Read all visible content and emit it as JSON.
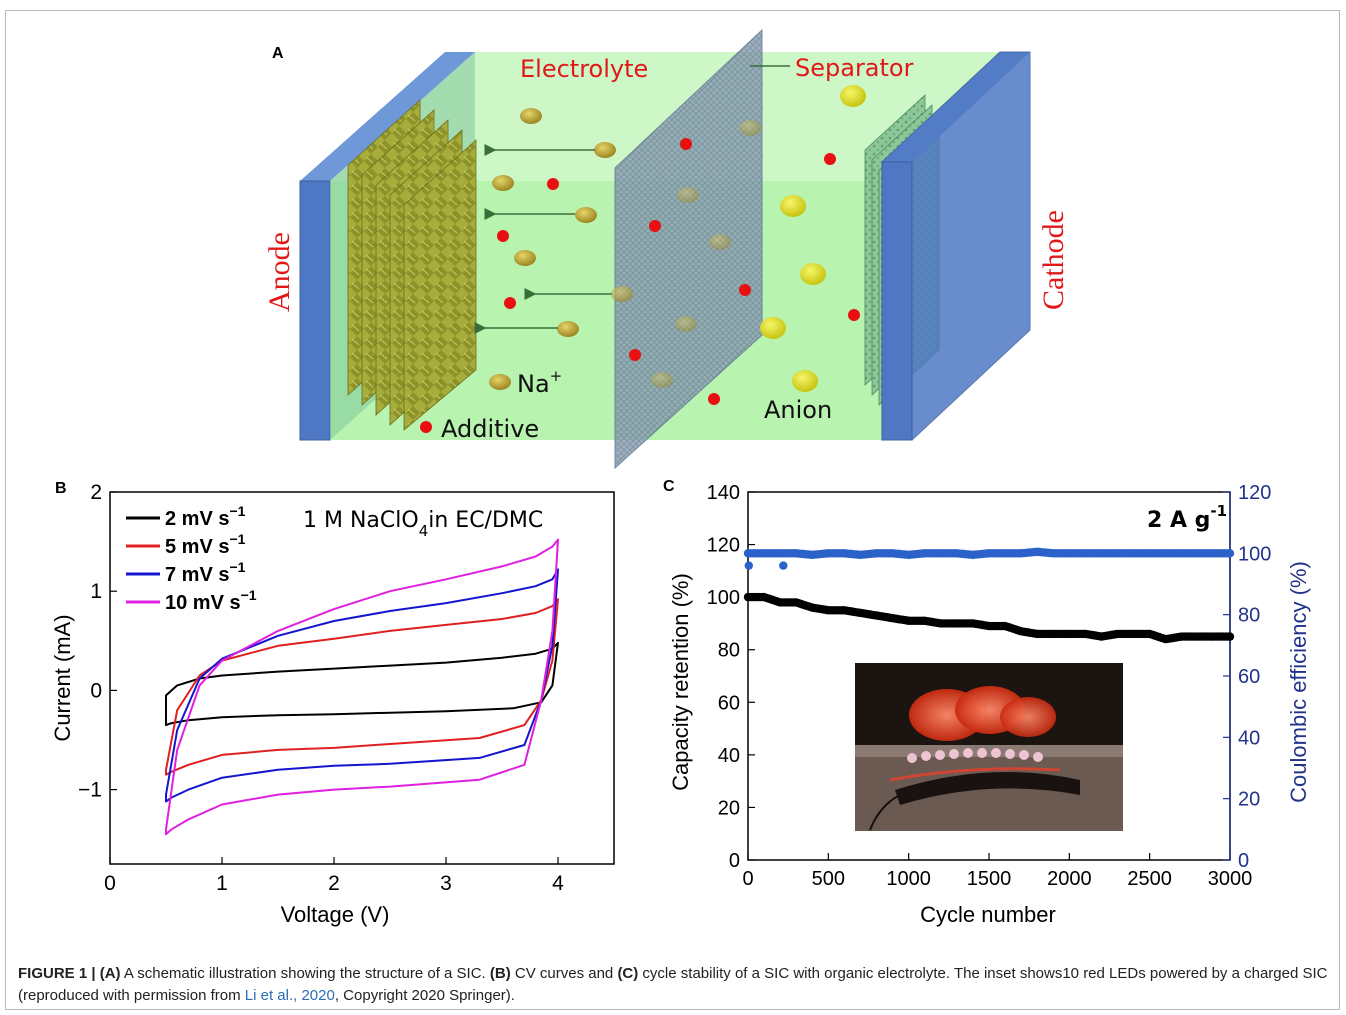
{
  "panel_a": {
    "label": "A",
    "electrolyte": "Electrolyte",
    "separator": "Separator",
    "anode": "Anode",
    "cathode": "Cathode",
    "na_ion": "Na",
    "na_sup": "+",
    "additive": "Additive",
    "anion": "Anion",
    "colors": {
      "electrolyte_fill": "#b8f3b0",
      "electrode": "#4f78c4",
      "label_red": "#e01818",
      "ion": "#b8a030",
      "anion": "#e3e222",
      "additive": "#e81010"
    }
  },
  "panel_b": {
    "label": "B"
  },
  "panel_c": {
    "label": "C"
  },
  "caption": {
    "fig": "FIGURE 1 |",
    "a": "(A)",
    "t1": " A schematic illustration showing the structure of a SIC. ",
    "b": "(B)",
    "t2": " CV curves and ",
    "c": "(C)",
    "t3": " cycle stability of a SIC with organic electrolyte. The inset shows10 red LEDs powered by a charged SIC (reproduced with permission from ",
    "cite": "Li et al., 2020",
    "t4": ", Copyright 2020 Springer)."
  },
  "chart_data": [
    {
      "type": "line",
      "xlabel": "Voltage (V)",
      "ylabel": "Current (mA)",
      "xlim": [
        0,
        4.5
      ],
      "ylim": [
        -1.75,
        2
      ],
      "xticks": [
        "0",
        "1",
        "2",
        "3",
        "4"
      ],
      "yticks": [
        "2",
        "1",
        "0",
        "−1"
      ],
      "annotation": "1 M NaClO",
      "annotation_sub": "4",
      "annotation_rest": "in EC/DMC",
      "legend_position": "top-left",
      "series": [
        {
          "name": "2 mV s",
          "unit_sup": "−1",
          "color": "#000000",
          "upper": [
            [
              0.5,
              -0.05
            ],
            [
              0.6,
              0.05
            ],
            [
              0.8,
              0.12
            ],
            [
              1.0,
              0.15
            ],
            [
              1.5,
              0.19
            ],
            [
              2.0,
              0.22
            ],
            [
              2.5,
              0.25
            ],
            [
              3.0,
              0.28
            ],
            [
              3.5,
              0.33
            ],
            [
              3.8,
              0.37
            ],
            [
              3.95,
              0.42
            ],
            [
              4.0,
              0.48
            ]
          ],
          "lower": [
            [
              4.0,
              0.48
            ],
            [
              3.95,
              0.05
            ],
            [
              3.85,
              -0.12
            ],
            [
              3.6,
              -0.18
            ],
            [
              3.0,
              -0.21
            ],
            [
              2.0,
              -0.24
            ],
            [
              1.5,
              -0.25
            ],
            [
              1.0,
              -0.27
            ],
            [
              0.7,
              -0.3
            ],
            [
              0.55,
              -0.33
            ],
            [
              0.5,
              -0.35
            ]
          ]
        },
        {
          "name": "5 mV s",
          "unit_sup": "−1",
          "color": "#e02020",
          "upper": [
            [
              0.5,
              -0.8
            ],
            [
              0.6,
              -0.2
            ],
            [
              0.8,
              0.15
            ],
            [
              1.0,
              0.3
            ],
            [
              1.5,
              0.45
            ],
            [
              2.0,
              0.52
            ],
            [
              2.5,
              0.6
            ],
            [
              3.0,
              0.66
            ],
            [
              3.5,
              0.72
            ],
            [
              3.8,
              0.78
            ],
            [
              3.95,
              0.85
            ],
            [
              4.0,
              0.92
            ]
          ],
          "lower": [
            [
              4.0,
              0.92
            ],
            [
              3.95,
              0.3
            ],
            [
              3.85,
              -0.1
            ],
            [
              3.7,
              -0.35
            ],
            [
              3.3,
              -0.48
            ],
            [
              2.5,
              -0.54
            ],
            [
              2.0,
              -0.58
            ],
            [
              1.5,
              -0.6
            ],
            [
              1.0,
              -0.65
            ],
            [
              0.7,
              -0.75
            ],
            [
              0.55,
              -0.82
            ],
            [
              0.5,
              -0.85
            ]
          ]
        },
        {
          "name": "7 mV s",
          "unit_sup": "−1",
          "color": "#1515d0",
          "upper": [
            [
              0.5,
              -1.05
            ],
            [
              0.6,
              -0.4
            ],
            [
              0.8,
              0.12
            ],
            [
              1.0,
              0.32
            ],
            [
              1.5,
              0.55
            ],
            [
              2.0,
              0.7
            ],
            [
              2.5,
              0.8
            ],
            [
              3.0,
              0.88
            ],
            [
              3.5,
              0.98
            ],
            [
              3.8,
              1.05
            ],
            [
              3.95,
              1.12
            ],
            [
              4.0,
              1.22
            ]
          ],
          "lower": [
            [
              4.0,
              1.22
            ],
            [
              3.95,
              0.45
            ],
            [
              3.85,
              -0.1
            ],
            [
              3.7,
              -0.55
            ],
            [
              3.3,
              -0.68
            ],
            [
              2.5,
              -0.74
            ],
            [
              2.0,
              -0.76
            ],
            [
              1.5,
              -0.8
            ],
            [
              1.0,
              -0.88
            ],
            [
              0.7,
              -1.0
            ],
            [
              0.55,
              -1.08
            ],
            [
              0.5,
              -1.12
            ]
          ]
        },
        {
          "name": "10 mV s",
          "unit_sup": "−1",
          "color": "#e020e0",
          "upper": [
            [
              0.5,
              -1.4
            ],
            [
              0.6,
              -0.6
            ],
            [
              0.8,
              0.05
            ],
            [
              1.0,
              0.3
            ],
            [
              1.5,
              0.6
            ],
            [
              2.0,
              0.82
            ],
            [
              2.5,
              1.0
            ],
            [
              3.0,
              1.12
            ],
            [
              3.5,
              1.25
            ],
            [
              3.8,
              1.35
            ],
            [
              3.95,
              1.45
            ],
            [
              4.0,
              1.52
            ]
          ],
          "lower": [
            [
              4.0,
              1.52
            ],
            [
              3.95,
              0.6
            ],
            [
              3.85,
              -0.1
            ],
            [
              3.7,
              -0.75
            ],
            [
              3.3,
              -0.9
            ],
            [
              2.5,
              -0.97
            ],
            [
              2.0,
              -1.0
            ],
            [
              1.5,
              -1.05
            ],
            [
              1.0,
              -1.15
            ],
            [
              0.7,
              -1.3
            ],
            [
              0.55,
              -1.4
            ],
            [
              0.5,
              -1.45
            ]
          ]
        }
      ]
    },
    {
      "type": "scatter",
      "xlabel": "Cycle number",
      "ylabel_left": "Capacity retention (%)",
      "ylabel_right": "Coulombic efficiency (%)",
      "xlim": [
        0,
        3000
      ],
      "ylim_left": [
        0,
        140
      ],
      "ylim_right": [
        0,
        120
      ],
      "xticks": [
        "0",
        "500",
        "1000",
        "1500",
        "2000",
        "2500",
        "3000"
      ],
      "yticks_left": [
        "140",
        "120",
        "100",
        "80",
        "60",
        "40",
        "20",
        "0"
      ],
      "yticks_right": [
        "120",
        "100",
        "80",
        "60",
        "40",
        "20",
        "0"
      ],
      "annotation": "2 A g",
      "annotation_sup": "-1",
      "inset": "photo of 10 red LEDs lit by a charged SIC",
      "series": [
        {
          "name": "",
          "axis": "left",
          "color": "#000000",
          "points": [
            [
              0,
              100
            ],
            [
              100,
              100
            ],
            [
              200,
              98
            ],
            [
              300,
              98
            ],
            [
              400,
              96
            ],
            [
              500,
              95
            ],
            [
              600,
              95
            ],
            [
              700,
              94
            ],
            [
              800,
              93
            ],
            [
              900,
              92
            ],
            [
              1000,
              91
            ],
            [
              1100,
              91
            ],
            [
              1200,
              90
            ],
            [
              1300,
              90
            ],
            [
              1400,
              90
            ],
            [
              1500,
              89
            ],
            [
              1600,
              89
            ],
            [
              1700,
              87
            ],
            [
              1800,
              86
            ],
            [
              1900,
              86
            ],
            [
              2000,
              86
            ],
            [
              2100,
              86
            ],
            [
              2200,
              85
            ],
            [
              2300,
              86
            ],
            [
              2400,
              86
            ],
            [
              2500,
              86
            ],
            [
              2600,
              84
            ],
            [
              2700,
              85
            ],
            [
              2800,
              85
            ],
            [
              2900,
              85
            ],
            [
              3000,
              85
            ]
          ]
        },
        {
          "name": "",
          "axis": "right",
          "color": "#2a62c9",
          "points": [
            [
              0,
              100
            ],
            [
              100,
              100
            ],
            [
              200,
              100
            ],
            [
              300,
              100
            ],
            [
              400,
              99.5
            ],
            [
              500,
              100
            ],
            [
              600,
              100
            ],
            [
              700,
              99.5
            ],
            [
              800,
              100
            ],
            [
              900,
              100
            ],
            [
              1000,
              99.5
            ],
            [
              1100,
              100
            ],
            [
              1200,
              100
            ],
            [
              1300,
              100
            ],
            [
              1400,
              99.5
            ],
            [
              1500,
              100
            ],
            [
              1600,
              100
            ],
            [
              1700,
              100
            ],
            [
              1800,
              100.5
            ],
            [
              1900,
              100
            ],
            [
              2000,
              100
            ],
            [
              2100,
              100
            ],
            [
              2200,
              100
            ],
            [
              2300,
              100
            ],
            [
              2400,
              100
            ],
            [
              2500,
              100
            ],
            [
              2600,
              100
            ],
            [
              2700,
              100
            ],
            [
              2800,
              100
            ],
            [
              2900,
              100
            ],
            [
              3000,
              100
            ]
          ]
        },
        {
          "name": "",
          "axis": "right",
          "color": "#2a62c9",
          "points": [
            [
              5,
              96
            ],
            [
              220,
              96
            ]
          ]
        }
      ]
    }
  ]
}
